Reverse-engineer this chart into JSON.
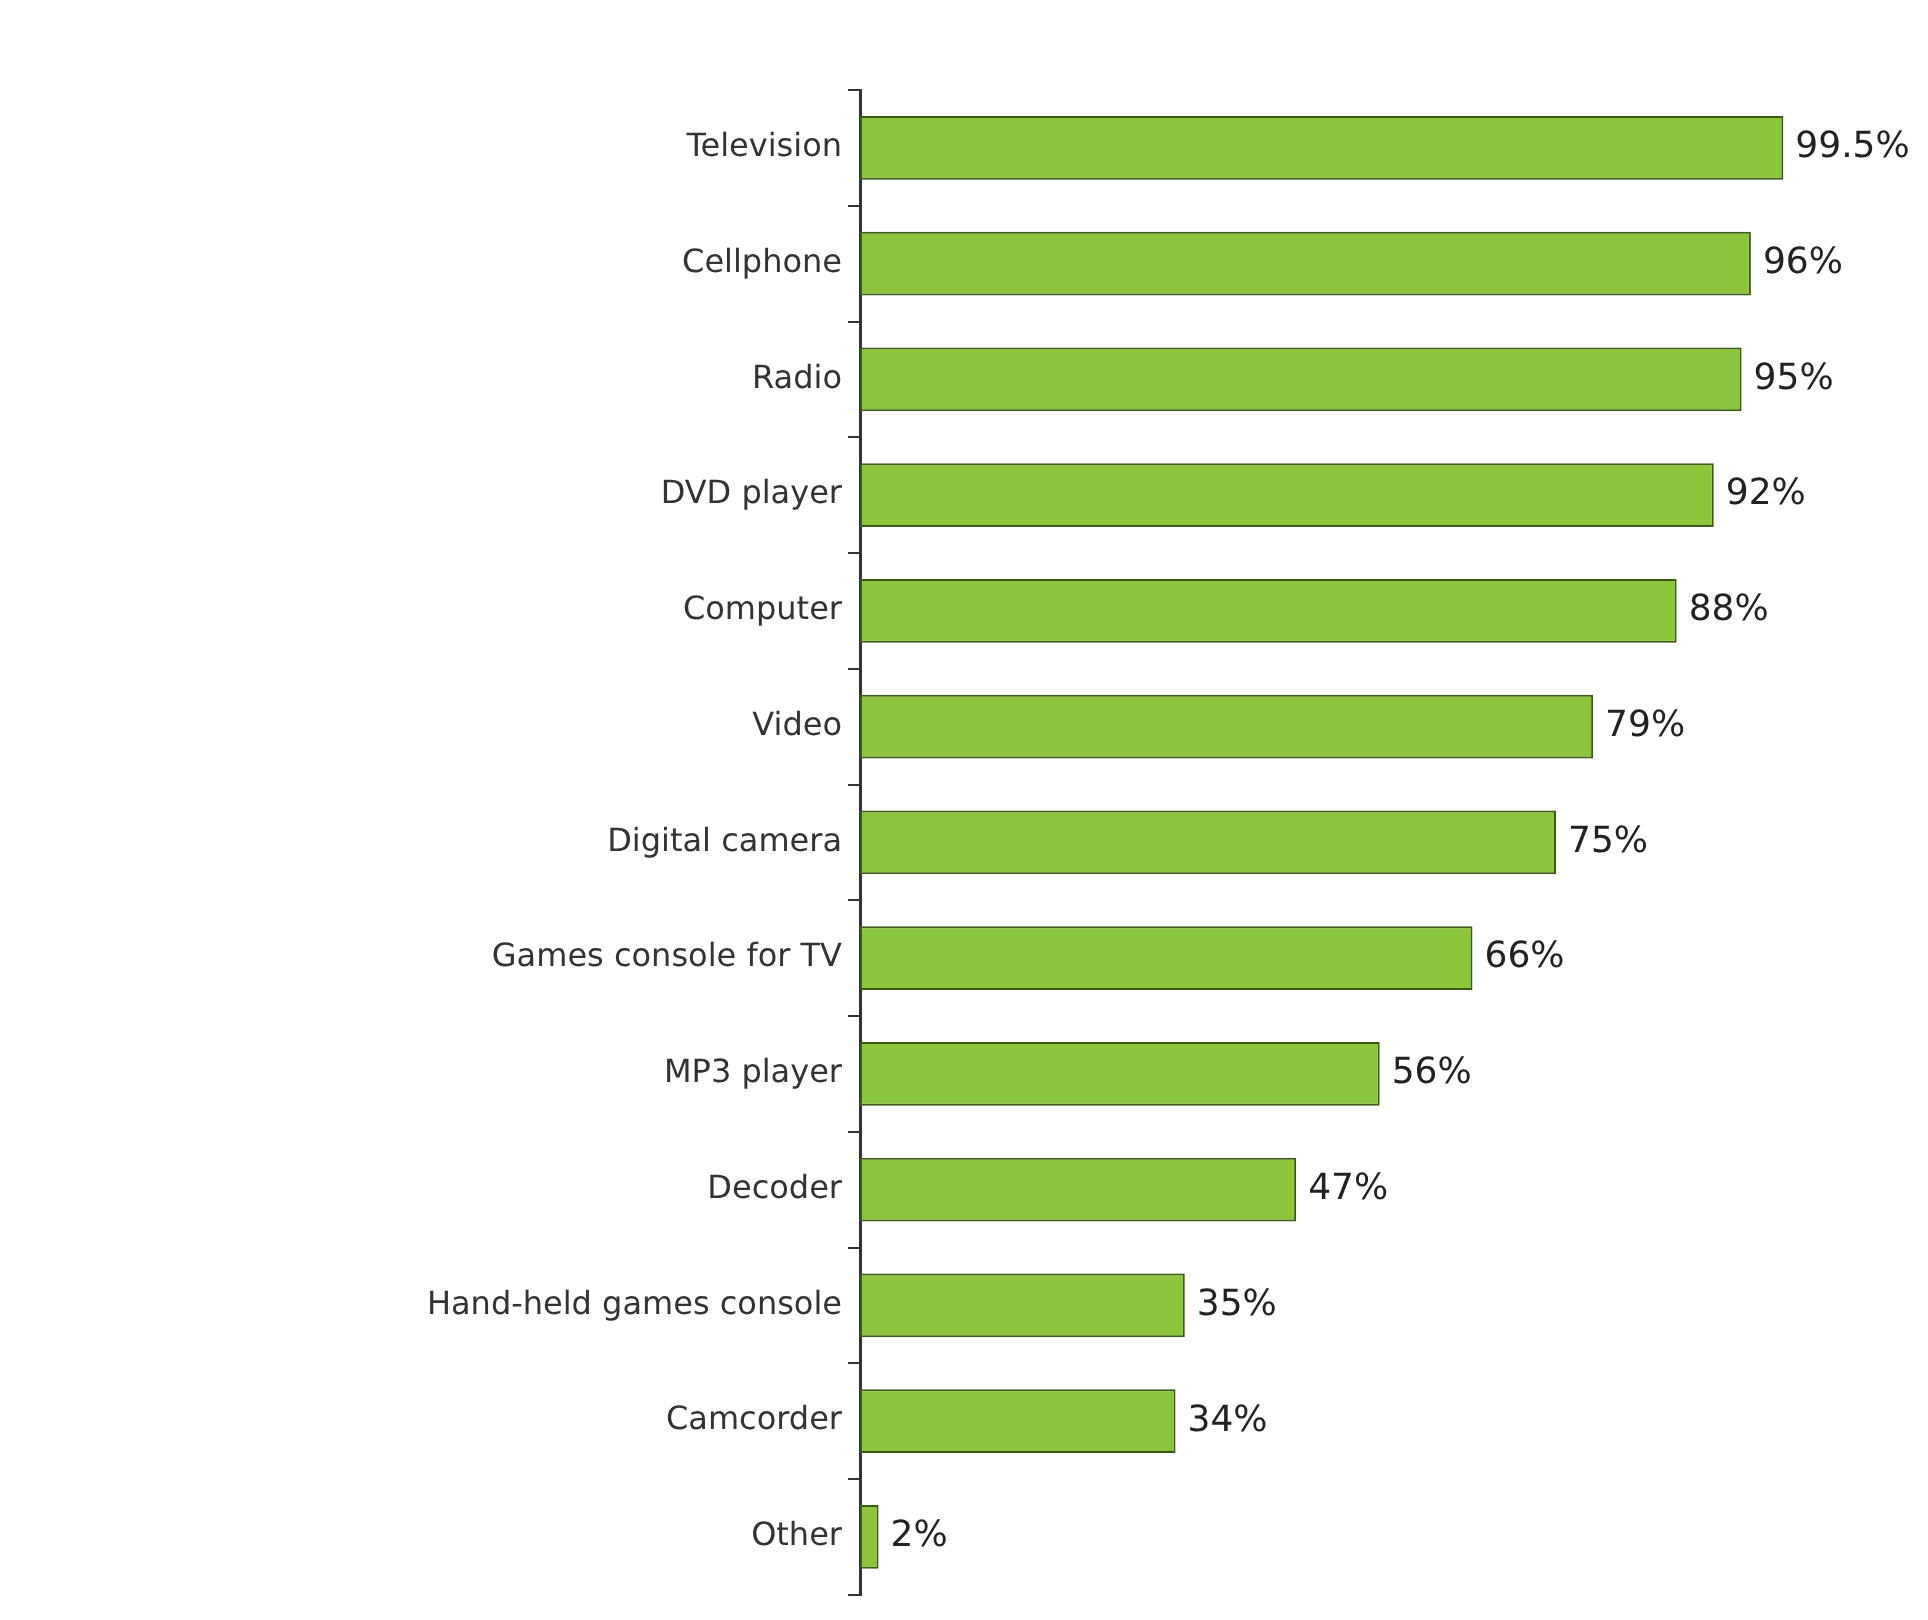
{
  "chart_data": {
    "type": "bar",
    "orientation": "horizontal",
    "categories": [
      "Television",
      "Cellphone",
      "Radio",
      "DVD player",
      "Computer",
      "Video",
      "Digital camera",
      "Games console for TV",
      "MP3 player",
      "Decoder",
      "Hand-held games console",
      "Camcorder",
      "Other"
    ],
    "values": [
      99.5,
      96,
      95,
      92,
      88,
      79,
      75,
      66,
      56,
      47,
      35,
      34,
      2
    ],
    "value_labels": [
      "99.5%",
      "96%",
      "95%",
      "92%",
      "88%",
      "79%",
      "75%",
      "66%",
      "56%",
      "47%",
      "35%",
      "34%",
      "2%"
    ],
    "color": "#8cc43c",
    "tick_labels": "y"
  }
}
